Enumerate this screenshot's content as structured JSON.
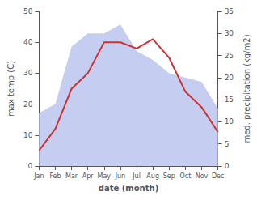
{
  "chart_data": {
    "type": "line",
    "categories": [
      "Jan",
      "Feb",
      "Mar",
      "Apr",
      "May",
      "Jun",
      "Jul",
      "Aug",
      "Sep",
      "Oct",
      "Nov",
      "Dec"
    ],
    "xlabel": "date (month)",
    "ylabel": "max temp (C)",
    "y2label": "med. precipitation (kg/m2)",
    "ylim": [
      0,
      50
    ],
    "yticks": [
      0,
      10,
      20,
      30,
      40,
      50
    ],
    "y2lim": [
      0,
      35
    ],
    "y2ticks": [
      0,
      5,
      10,
      15,
      20,
      25,
      30,
      35
    ],
    "grid": false,
    "series": [
      {
        "type": "line",
        "color": "#cc3333",
        "values": [
          5,
          12,
          25,
          30,
          40,
          40,
          38,
          41,
          35,
          24,
          19,
          11
        ]
      },
      {
        "type": "area",
        "color": "#c5cef0",
        "axis": "y2",
        "values": [
          12,
          14,
          27,
          30,
          30,
          32,
          26,
          24,
          21,
          20,
          19,
          13
        ]
      }
    ]
  }
}
